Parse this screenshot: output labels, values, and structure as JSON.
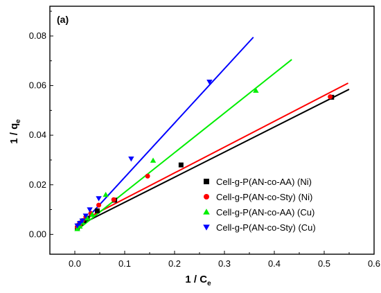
{
  "chart_data": {
    "type": "scatter",
    "panel_label": "(a)",
    "xlabel": "1 / C",
    "xlabel_sub": "e",
    "ylabel": "1 / q",
    "ylabel_sub": "e",
    "xlim": [
      -0.05,
      0.6
    ],
    "ylim": [
      -0.008,
      0.092
    ],
    "xticks": [
      0.0,
      0.1,
      0.2,
      0.3,
      0.4,
      0.5,
      0.6
    ],
    "xtick_labels": [
      "0.0",
      "0.1",
      "0.2",
      "0.3",
      "0.4",
      "0.5",
      "0.6"
    ],
    "yticks": [
      0.0,
      0.02,
      0.04,
      0.06,
      0.08
    ],
    "ytick_labels": [
      "0.00",
      "0.02",
      "0.04",
      "0.06",
      "0.08"
    ],
    "grid": false,
    "legend_position": "bottom-right",
    "series": [
      {
        "name": "Cell-g-P(AN-co-AA) (Ni)",
        "marker": "square",
        "color": "#000000",
        "points": [
          [
            0.005,
            0.0025
          ],
          [
            0.008,
            0.0035
          ],
          [
            0.012,
            0.0045
          ],
          [
            0.018,
            0.0055
          ],
          [
            0.025,
            0.0065
          ],
          [
            0.045,
            0.0095
          ],
          [
            0.08,
            0.0138
          ],
          [
            0.213,
            0.028
          ],
          [
            0.515,
            0.0553
          ]
        ],
        "fit": [
          [
            0.005,
            0.0033
          ],
          [
            0.55,
            0.0585
          ]
        ]
      },
      {
        "name": "Cell-g-P(AN-co-Sty) (Ni)",
        "marker": "circle",
        "color": "#ff0000",
        "points": [
          [
            0.005,
            0.003
          ],
          [
            0.01,
            0.004
          ],
          [
            0.015,
            0.0055
          ],
          [
            0.022,
            0.007
          ],
          [
            0.032,
            0.0085
          ],
          [
            0.048,
            0.0118
          ],
          [
            0.078,
            0.014
          ],
          [
            0.146,
            0.0235
          ],
          [
            0.512,
            0.0555
          ]
        ],
        "fit": [
          [
            0.005,
            0.0045
          ],
          [
            0.548,
            0.061
          ]
        ]
      },
      {
        "name": "Cell-g-P(AN-co-AA) (Cu)",
        "marker": "triangle-up",
        "color": "#00ee00",
        "points": [
          [
            0.005,
            0.0022
          ],
          [
            0.01,
            0.0032
          ],
          [
            0.015,
            0.0048
          ],
          [
            0.025,
            0.0065
          ],
          [
            0.035,
            0.008
          ],
          [
            0.062,
            0.016
          ],
          [
            0.157,
            0.0298
          ],
          [
            0.363,
            0.058
          ]
        ],
        "fit": [
          [
            0.005,
            0.0018
          ],
          [
            0.435,
            0.0705
          ]
        ]
      },
      {
        "name": "Cell-g-P(AN-co-Sty) (Cu)",
        "marker": "triangle-down",
        "color": "#0000ff",
        "points": [
          [
            0.005,
            0.0035
          ],
          [
            0.01,
            0.0045
          ],
          [
            0.015,
            0.0055
          ],
          [
            0.022,
            0.0075
          ],
          [
            0.03,
            0.01
          ],
          [
            0.048,
            0.0145
          ],
          [
            0.113,
            0.0305
          ],
          [
            0.27,
            0.0615
          ]
        ],
        "fit": [
          [
            0.005,
            0.0022
          ],
          [
            0.358,
            0.0795
          ]
        ]
      }
    ]
  }
}
